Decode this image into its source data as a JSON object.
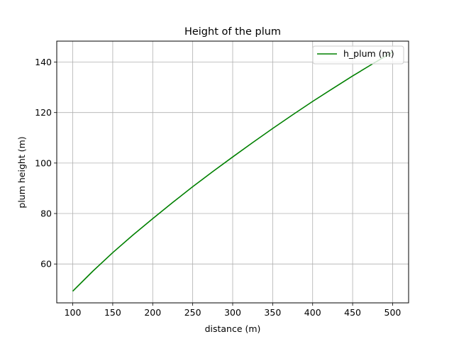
{
  "chart_data": {
    "type": "line",
    "title": "Height of the plum",
    "xlabel": "distance (m)",
    "ylabel": "plum height (m)",
    "xlim": [
      80,
      520
    ],
    "ylim": [
      44.6,
      148.3
    ],
    "xticks": [
      100,
      150,
      200,
      250,
      300,
      350,
      400,
      450,
      500
    ],
    "yticks": [
      60,
      80,
      100,
      120,
      140
    ],
    "grid": true,
    "legend_position": "upper right",
    "series": [
      {
        "name": "h_plum (m)",
        "color": "#008000",
        "x": [
          100,
          125,
          150,
          175,
          200,
          225,
          250,
          275,
          300,
          325,
          350,
          375,
          400,
          425,
          450,
          475,
          500
        ],
        "y": [
          49.2,
          57.1,
          64.5,
          71.4,
          78.0,
          84.4,
          90.6,
          96.6,
          102.4,
          108.1,
          113.7,
          119.1,
          124.4,
          129.5,
          134.5,
          139.3,
          144.0
        ]
      }
    ]
  }
}
